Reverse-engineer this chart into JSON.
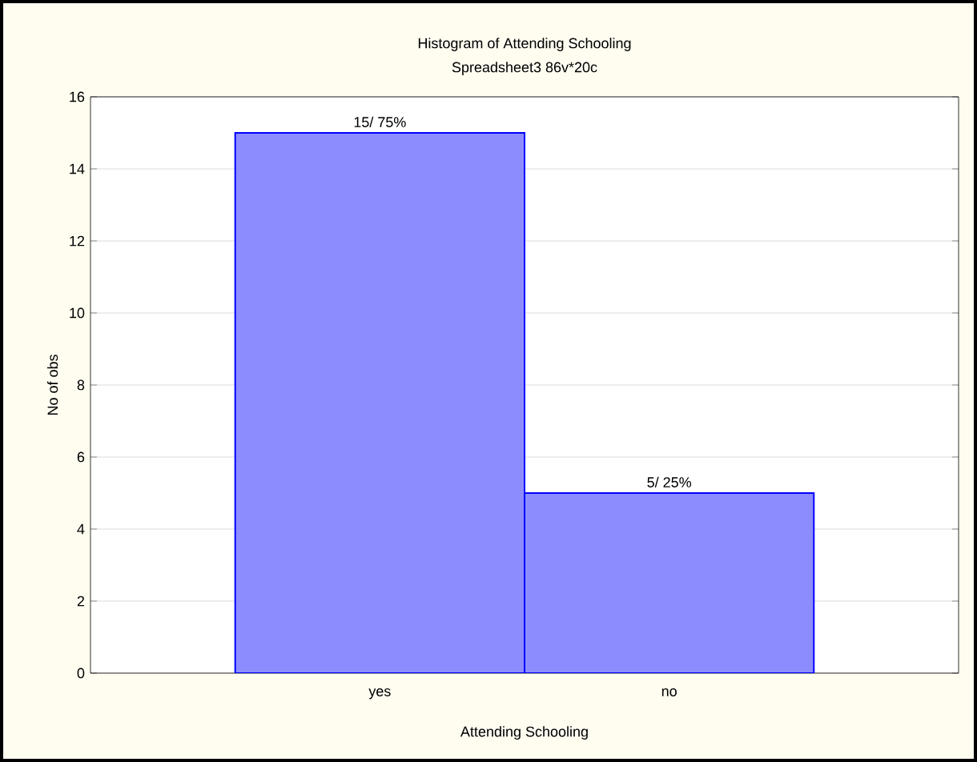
{
  "chart_data": {
    "type": "bar",
    "title": "Histogram of Attending Schooling",
    "subtitle": "Spreadsheet3 86v*20c",
    "xlabel": "Attending Schooling",
    "ylabel": "No of obs",
    "categories": [
      "yes",
      "no"
    ],
    "values": [
      15,
      5
    ],
    "value_labels": [
      "15/ 75%",
      "5/ 25%"
    ],
    "color": "#8c8cff",
    "ylim": [
      0,
      16
    ],
    "yticks": [
      0,
      2,
      4,
      6,
      8,
      10,
      12,
      14,
      16
    ],
    "grid": "y"
  }
}
